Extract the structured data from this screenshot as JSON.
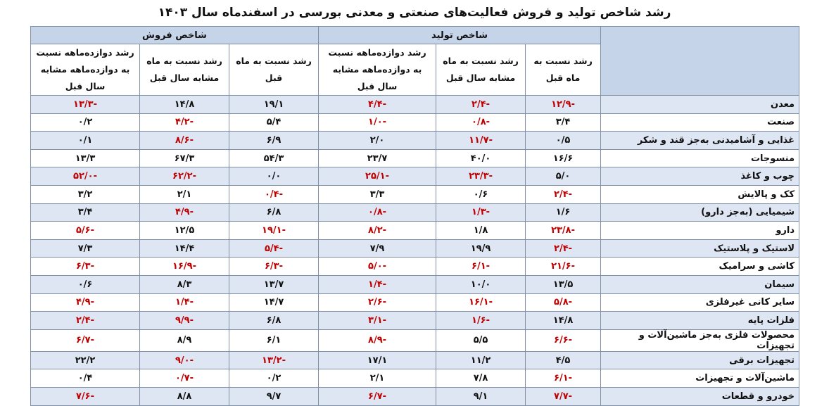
{
  "title": "رشد شاخص تولید و فروش فعالیت‌های صنعتی و معدنی بورسی در اسفندماه سال ۱۴۰۳",
  "groups": {
    "production": "شاخص تولید",
    "sales": "شاخص فروش"
  },
  "columns": {
    "p_month": "رشد نسبت به ماه قبل",
    "p_yoy": "رشد نسبت به ماه مشابه سال قبل",
    "p_12m": "رشد دوازده‌ماهه نسبت به دوازده‌ماهه مشابه سال قبل",
    "s_month": "رشد نسبت به ماه قبل",
    "s_yoy": "رشد نسبت به ماه مشابه سال قبل",
    "s_12m": "رشد دوازده‌ماهه نسبت به دوازده‌ماهه مشابه سال قبل"
  },
  "rows": [
    {
      "label": "معدن",
      "p_month": "-۱۲/۹",
      "p_yoy": "-۲/۴",
      "p_12m": "-۴/۴",
      "s_month": "۱۹/۱",
      "s_yoy": "۱۴/۸",
      "s_12m": "-۱۳/۳"
    },
    {
      "label": "صنعت",
      "p_month": "۳/۴",
      "p_yoy": "-۰/۸",
      "p_12m": "-۱/۰",
      "s_month": "۵/۴",
      "s_yoy": "-۴/۲",
      "s_12m": "۰/۲"
    },
    {
      "label": "غذایی و آشامیدنی به‌جز قند و شکر",
      "p_month": "۰/۵",
      "p_yoy": "-۱۱/۷",
      "p_12m": "۲/۰",
      "s_month": "۶/۹",
      "s_yoy": "-۸/۶",
      "s_12m": "۰/۱"
    },
    {
      "label": "منسوجات",
      "p_month": "۱۶/۶",
      "p_yoy": "۴۰/۰",
      "p_12m": "۲۳/۷",
      "s_month": "۵۴/۳",
      "s_yoy": "۶۷/۳",
      "s_12m": "۱۳/۳"
    },
    {
      "label": "چوب و کاغذ",
      "p_month": "۵/۰",
      "p_yoy": "-۲۳/۳",
      "p_12m": "-۲۵/۱",
      "s_month": "۰/۰",
      "s_yoy": "-۶۲/۲",
      "s_12m": "-۵۲/۰"
    },
    {
      "label": "کک و پالایش",
      "p_month": "-۲/۴",
      "p_yoy": "۰/۶",
      "p_12m": "۳/۳",
      "s_month": "-۰/۴",
      "s_yoy": "۲/۱",
      "s_12m": "۳/۲"
    },
    {
      "label": "شیمیایی (به‌جز دارو)",
      "p_month": "۱/۶",
      "p_yoy": "-۱/۳",
      "p_12m": "-۰/۸",
      "s_month": "۶/۸",
      "s_yoy": "-۴/۹",
      "s_12m": "۳/۴"
    },
    {
      "label": "دارو",
      "p_month": "-۲۳/۸",
      "p_yoy": "۱/۸",
      "p_12m": "-۸/۲",
      "s_month": "-۱۹/۱",
      "s_yoy": "۱۲/۵",
      "s_12m": "-۵/۶"
    },
    {
      "label": "لاستیک و پلاستیک",
      "p_month": "-۲/۴",
      "p_yoy": "۱۹/۹",
      "p_12m": "۷/۹",
      "s_month": "-۵/۴",
      "s_yoy": "۱۴/۴",
      "s_12m": "۷/۳"
    },
    {
      "label": "کاشی و سرامیک",
      "p_month": "-۲۱/۶",
      "p_yoy": "-۶/۱",
      "p_12m": "-۵/۰",
      "s_month": "-۶/۳",
      "s_yoy": "-۱۶/۹",
      "s_12m": "-۶/۳"
    },
    {
      "label": "سیمان",
      "p_month": "۱۳/۵",
      "p_yoy": "۱۰/۰",
      "p_12m": "-۱/۴",
      "s_month": "۱۳/۷",
      "s_yoy": "۸/۳",
      "s_12m": "۰/۶"
    },
    {
      "label": "سایر کانی غیرفلزی",
      "p_month": "-۵/۸",
      "p_yoy": "-۱۶/۱",
      "p_12m": "-۲/۶",
      "s_month": "۱۴/۷",
      "s_yoy": "-۱/۴",
      "s_12m": "-۴/۹"
    },
    {
      "label": "فلزات پایه",
      "p_month": "۱۴/۸",
      "p_yoy": "-۱/۶",
      "p_12m": "-۳/۱",
      "s_month": "۶/۸",
      "s_yoy": "-۹/۹",
      "s_12m": "-۲/۴"
    },
    {
      "label": "محصولات فلزی به‌جز ماشین‌آلات و تجهیزات",
      "p_month": "-۶/۶",
      "p_yoy": "۵/۵",
      "p_12m": "-۸/۹",
      "s_month": "۶/۱",
      "s_yoy": "۸/۹",
      "s_12m": "-۶/۷"
    },
    {
      "label": "تجهیزات برقی",
      "p_month": "۴/۵",
      "p_yoy": "۱۱/۲",
      "p_12m": "۱۷/۱",
      "s_month": "-۱۳/۲",
      "s_yoy": "-۹/۰",
      "s_12m": "۲۲/۲"
    },
    {
      "label": "ماشین‌آلات و تجهیزات",
      "p_month": "-۶/۱",
      "p_yoy": "۷/۸",
      "p_12m": "۲/۱",
      "s_month": "۰/۲",
      "s_yoy": "-۰/۷",
      "s_12m": "۰/۴"
    },
    {
      "label": "خودرو و قطعات",
      "p_month": "-۷/۷",
      "p_yoy": "۹/۱",
      "p_12m": "-۶/۷",
      "s_month": "۹/۷",
      "s_yoy": "۸/۸",
      "s_12m": "-۷/۶"
    }
  ]
}
